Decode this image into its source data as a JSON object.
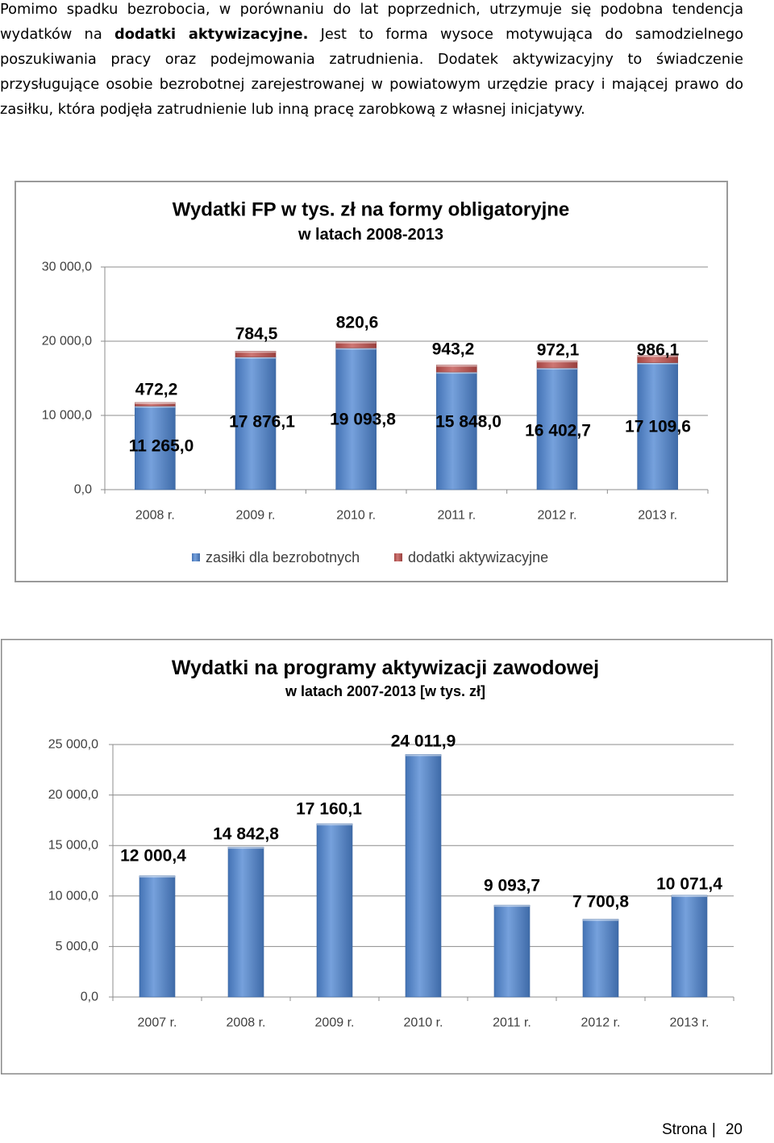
{
  "paragraph": {
    "line_1": "Pomimo spadku bezrobocia, w porównaniu do lat poprzednich, utrzymuje się podobna tendencja",
    "line_2_before": "wydatków na ",
    "line_2_bold": "dodatki aktywizacyjne.",
    "line_2_after": " Jest to forma wysoce motywująca do samodzielnego",
    "line_3": "poszukiwania pracy oraz podejmowania zatrudnienia. Dodatek aktywizacyjny to świadczenie",
    "line_4": "przysługujące osobie bezrobotnej zarejestrowanej w powiatowym urzędzie pracy i mającej prawo do",
    "line_5": "zasiłku, która podjęła zatrudnienie lub inną pracę zarobkową z własnej inicjatywy."
  },
  "chart_data": [
    {
      "type": "bar",
      "stacked": true,
      "title": "Wydatki FP w tys. zł na formy obligatoryjne",
      "subtitle": "w latach 2008-2013",
      "categories": [
        "2008 r.",
        "2009 r.",
        "2010 r.",
        "2011 r.",
        "2012 r.",
        "2013 r."
      ],
      "series": [
        {
          "name": "zasiłki dla bezrobotnych",
          "values": [
            11265.0,
            17876.1,
            19093.8,
            15848.0,
            16402.7,
            17109.6
          ],
          "labels": [
            "11 265,0",
            "17 876,1",
            "19 093,8",
            "15 848,0",
            "16 402,7",
            "17 109,6"
          ],
          "color": "#4f86d2"
        },
        {
          "name": "dodatki aktywizacyjne",
          "values": [
            472.2,
            784.5,
            820.6,
            943.2,
            972.1,
            986.1
          ],
          "labels": [
            "472,2",
            "784,5",
            "820,6",
            "943,2",
            "972,1",
            "986,1"
          ],
          "color": "#c0504d"
        }
      ],
      "yticks": [
        0,
        10000,
        20000,
        30000
      ],
      "ytick_labels": [
        "0,0",
        "10 000,0",
        "20 000,0",
        "30 000,0"
      ],
      "ylim": [
        0,
        30000
      ],
      "grid": true,
      "legend": "bottom"
    },
    {
      "type": "bar",
      "title": "Wydatki na programy aktywizacji zawodowej",
      "subtitle": "w latach 2007-2013 [w tys. zł]",
      "categories": [
        "2007 r.",
        "2008 r.",
        "2009 r.",
        "2010 r.",
        "2011 r.",
        "2012 r.",
        "2013 r."
      ],
      "values": [
        12000.4,
        14842.8,
        17160.1,
        24011.9,
        9093.7,
        7700.8,
        10071.4
      ],
      "value_labels": [
        "12 000,4",
        "14 842,8",
        "17 160,1",
        "24 011,9",
        "9 093,7",
        "7 700,8",
        "10 071,4"
      ],
      "color": "#4f86d2",
      "yticks": [
        0,
        5000,
        10000,
        15000,
        20000,
        25000
      ],
      "ytick_labels": [
        "0,0",
        "5 000,0",
        "10 000,0",
        "15 000,0",
        "20 000,0",
        "25 000,0"
      ],
      "ylim": [
        0,
        25000
      ],
      "grid": true,
      "legend": "none"
    }
  ],
  "footer": {
    "label": "Strona",
    "separator": "|",
    "page_number": "20"
  }
}
